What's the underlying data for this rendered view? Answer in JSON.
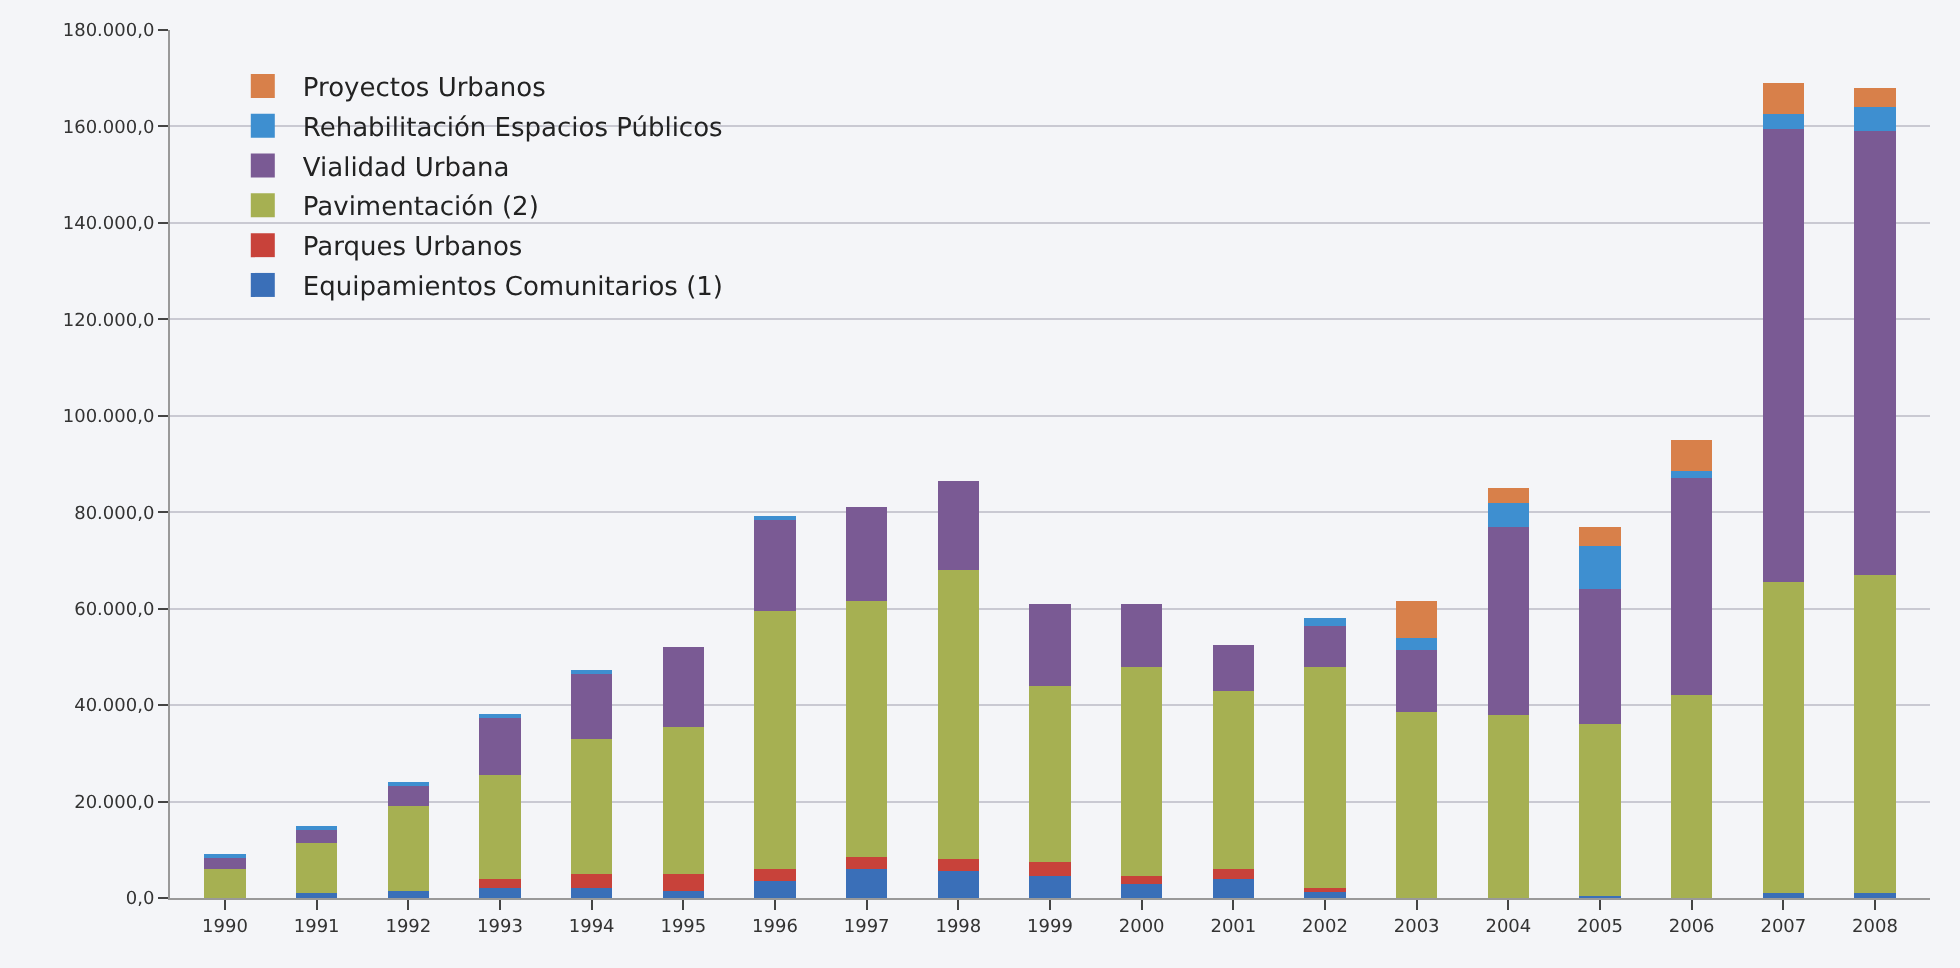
{
  "chart_data": {
    "type": "bar",
    "stacked": true,
    "categories": [
      "1990",
      "1991",
      "1992",
      "1993",
      "1994",
      "1995",
      "1996",
      "1997",
      "1998",
      "1999",
      "2000",
      "2001",
      "2002",
      "2003",
      "2004",
      "2005",
      "2006",
      "2007",
      "2008"
    ],
    "series": [
      {
        "name": "Equipamientos Comunitarios (1)",
        "color": "#3a6fb8",
        "values": [
          0,
          1000,
          1500,
          2000,
          2000,
          1500,
          3500,
          6000,
          5500,
          4500,
          3000,
          4000,
          1500,
          0,
          0,
          500,
          0,
          1000,
          1000
        ]
      },
      {
        "name": "Parques Urbanos",
        "color": "#c8423a",
        "values": [
          0,
          0,
          0,
          2000,
          3000,
          3500,
          2500,
          2500,
          2500,
          3000,
          1500,
          2000,
          500,
          0,
          0,
          0,
          0,
          0,
          0
        ]
      },
      {
        "name": "Pavimentación (2)",
        "color": "#a6b052",
        "values": [
          6000,
          10500,
          17500,
          21500,
          28000,
          30500,
          53500,
          53000,
          60000,
          36500,
          43500,
          37000,
          46000,
          38500,
          38000,
          35500,
          42000,
          64500,
          66000
        ]
      },
      {
        "name": "Vialidad Urbana",
        "color": "#7a5a94",
        "values": [
          2500,
          3000,
          4500,
          12000,
          13500,
          16500,
          19000,
          19500,
          18500,
          17000,
          13000,
          9500,
          8500,
          13000,
          39000,
          28000,
          45000,
          94000,
          92000
        ]
      },
      {
        "name": "Rehabilitación Espacios Públicos",
        "color": "#3e8fd0",
        "values": [
          500,
          500,
          500,
          500,
          500,
          0,
          500,
          0,
          0,
          0,
          0,
          0,
          1500,
          2500,
          5000,
          9000,
          1500,
          3000,
          5000
        ]
      },
      {
        "name": "Proyectos Urbanos",
        "color": "#d8804a",
        "values": [
          0,
          0,
          0,
          0,
          0,
          0,
          0,
          0,
          0,
          0,
          0,
          0,
          0,
          7500,
          3000,
          4000,
          6500,
          6500,
          4000
        ]
      }
    ],
    "ylim": [
      0,
      180000
    ],
    "yticks": [
      {
        "value": 0,
        "label": "0,0"
      },
      {
        "value": 20000,
        "label": "20.000,0"
      },
      {
        "value": 40000,
        "label": "40.000,0"
      },
      {
        "value": 60000,
        "label": "60.000,0"
      },
      {
        "value": 80000,
        "label": "80.000,0"
      },
      {
        "value": 100000,
        "label": "100.000,0"
      },
      {
        "value": 120000,
        "label": "120.000,0"
      },
      {
        "value": 140000,
        "label": "140.000,0"
      },
      {
        "value": 160000,
        "label": "160.000,0"
      },
      {
        "value": 180000,
        "label": "180.000,0"
      }
    ],
    "grid": "y",
    "legend": "top left"
  }
}
